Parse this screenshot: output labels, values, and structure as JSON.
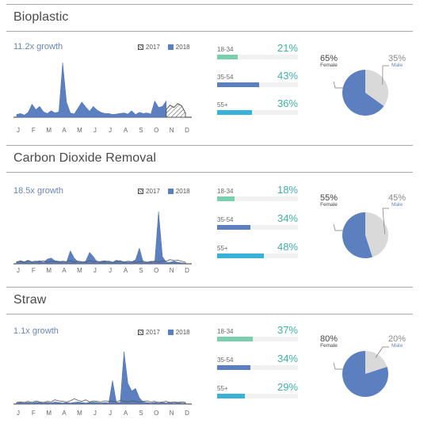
{
  "legend": {
    "y2017": "2017",
    "y2018": "2018"
  },
  "months": [
    "J",
    "F",
    "M",
    "A",
    "M",
    "J",
    "J",
    "A",
    "S",
    "O",
    "N",
    "D"
  ],
  "sections": [
    {
      "title": "Bioplastic",
      "growth": "11.2x growth",
      "ages": [
        {
          "label": "18-34",
          "pct": "21%",
          "value": 0.21,
          "color": "#79cfae"
        },
        {
          "label": "35-54",
          "pct": "43%",
          "value": 0.43,
          "color": "#5b7fbf"
        },
        {
          "label": "55+",
          "pct": "36%",
          "value": 0.36,
          "color": "#3ab1d6"
        }
      ],
      "female": {
        "pct": "65%",
        "label": "Female",
        "value": 0.65
      },
      "male": {
        "pct": "35%",
        "label": "Male",
        "value": 0.35
      }
    },
    {
      "title": "Carbon Dioxide Removal",
      "growth": "18.5x growth",
      "ages": [
        {
          "label": "18-34",
          "pct": "18%",
          "value": 0.18,
          "color": "#79cfae"
        },
        {
          "label": "35-54",
          "pct": "34%",
          "value": 0.34,
          "color": "#5b7fbf"
        },
        {
          "label": "55+",
          "pct": "48%",
          "value": 0.48,
          "color": "#3ab1d6"
        }
      ],
      "female": {
        "pct": "55%",
        "label": "Female",
        "value": 0.55
      },
      "male": {
        "pct": "45%",
        "label": "Male",
        "value": 0.45
      }
    },
    {
      "title": "Straw",
      "growth": "1.1x growth",
      "ages": [
        {
          "label": "18-34",
          "pct": "37%",
          "value": 0.37,
          "color": "#79cfae"
        },
        {
          "label": "35-54",
          "pct": "34%",
          "value": 0.34,
          "color": "#5b7fbf"
        },
        {
          "label": "55+",
          "pct": "29%",
          "value": 0.29,
          "color": "#3ab1d6"
        }
      ],
      "female": {
        "pct": "80%",
        "label": "Female",
        "value": 0.8
      },
      "male": {
        "pct": "20%",
        "label": "Male",
        "value": 0.2
      }
    }
  ],
  "colors": {
    "y2018": "#5b7fbf",
    "female": "#5b7fbf",
    "male": "#d9d9d9",
    "pct_text": "#3fb2a6"
  },
  "chart_data": [
    {
      "type": "area",
      "title": "Bioplastic",
      "ylim": [
        0,
        100
      ],
      "x": [
        0,
        0.25,
        0.5,
        0.75,
        1,
        1.25,
        1.5,
        1.75,
        2,
        2.25,
        2.5,
        2.75,
        3,
        3.25,
        3.5,
        3.75,
        4,
        4.25,
        4.5,
        4.75,
        5,
        5.25,
        5.5,
        5.75,
        6,
        6.25,
        6.5,
        6.75,
        7,
        7.25,
        7.5,
        7.75,
        8,
        8.25,
        8.5,
        8.75,
        9,
        9.25,
        9.5,
        9.75,
        10,
        10.25,
        10.5,
        10.75,
        11
      ],
      "series": [
        {
          "name": "2018",
          "values": [
            5,
            7,
            4,
            9,
            24,
            14,
            20,
            10,
            7,
            12,
            8,
            10,
            100,
            28,
            8,
            6,
            17,
            28,
            19,
            11,
            20,
            13,
            9,
            7,
            7,
            5,
            6,
            7,
            8,
            6,
            12,
            5,
            9,
            7,
            8,
            6,
            30,
            18,
            20,
            30,
            null,
            null,
            null,
            null,
            null
          ]
        },
        {
          "name": "2017",
          "values": [
            null,
            null,
            null,
            null,
            null,
            null,
            null,
            null,
            null,
            null,
            null,
            null,
            null,
            null,
            null,
            null,
            null,
            null,
            null,
            null,
            null,
            null,
            null,
            null,
            null,
            null,
            null,
            null,
            null,
            null,
            null,
            null,
            null,
            null,
            null,
            null,
            null,
            null,
            null,
            14,
            22,
            18,
            25,
            21,
            8
          ]
        }
      ]
    },
    {
      "type": "area",
      "title": "Carbon Dioxide Removal",
      "ylim": [
        0,
        100
      ],
      "x": [
        0,
        0.25,
        0.5,
        0.75,
        1,
        1.25,
        1.5,
        1.75,
        2,
        2.25,
        2.5,
        2.75,
        3,
        3.25,
        3.5,
        3.75,
        4,
        4.25,
        4.5,
        4.75,
        5,
        5.25,
        5.5,
        5.75,
        6,
        6.25,
        6.5,
        6.75,
        7,
        7.25,
        7.5,
        7.75,
        8,
        8.25,
        8.5,
        8.75,
        9,
        9.25,
        9.5,
        9.75,
        10,
        10.25,
        10.5,
        10.75,
        11
      ],
      "series": [
        {
          "name": "2018",
          "values": [
            3,
            6,
            4,
            7,
            3,
            4,
            6,
            3,
            9,
            11,
            6,
            5,
            4,
            3,
            25,
            11,
            4,
            3,
            5,
            22,
            14,
            3,
            5,
            6,
            4,
            3,
            7,
            5,
            4,
            3,
            4,
            8,
            30,
            3,
            3,
            5,
            4,
            100,
            14,
            3,
            3,
            5,
            3,
            2,
            1
          ]
        },
        {
          "name": "2017",
          "values": [
            4,
            5,
            3,
            6,
            4,
            5,
            4,
            6,
            3,
            5,
            4,
            3,
            5,
            4,
            6,
            3,
            5,
            4,
            3,
            6,
            4,
            5,
            3,
            4,
            5,
            3,
            4,
            6,
            3,
            5,
            4,
            3,
            4,
            5,
            3,
            4,
            5,
            3,
            6,
            5,
            8,
            6,
            7,
            5,
            3
          ]
        }
      ]
    },
    {
      "type": "area",
      "title": "Straw",
      "ylim": [
        0,
        100
      ],
      "x": [
        0,
        0.25,
        0.5,
        0.75,
        1,
        1.25,
        1.5,
        1.75,
        2,
        2.25,
        2.5,
        2.75,
        3,
        3.25,
        3.5,
        3.75,
        4,
        4.25,
        4.5,
        4.75,
        5,
        5.25,
        5.5,
        5.75,
        6,
        6.25,
        6.5,
        6.75,
        7,
        7.25,
        7.5,
        7.75,
        8,
        8.25,
        8.5,
        8.75,
        9,
        9.25,
        9.5,
        9.75,
        10,
        10.25,
        10.5,
        10.75,
        11
      ],
      "series": [
        {
          "name": "2018",
          "values": [
            2,
            3,
            2,
            3,
            2,
            4,
            3,
            2,
            3,
            2,
            4,
            3,
            2,
            3,
            2,
            3,
            4,
            3,
            2,
            3,
            4,
            3,
            2,
            3,
            2,
            45,
            3,
            3,
            100,
            40,
            25,
            30,
            12,
            4,
            3,
            2,
            3,
            2,
            3,
            2,
            3,
            2,
            3,
            2,
            2
          ]
        },
        {
          "name": "2017",
          "values": [
            3,
            4,
            3,
            5,
            3,
            6,
            4,
            3,
            5,
            4,
            8,
            6,
            5,
            4,
            6,
            10,
            7,
            5,
            8,
            4,
            6,
            5,
            4,
            6,
            5,
            6,
            4,
            7,
            5,
            4,
            6,
            5,
            4,
            5,
            6,
            4,
            5,
            3,
            4,
            5,
            3,
            4,
            3,
            4,
            3
          ]
        }
      ]
    }
  ]
}
